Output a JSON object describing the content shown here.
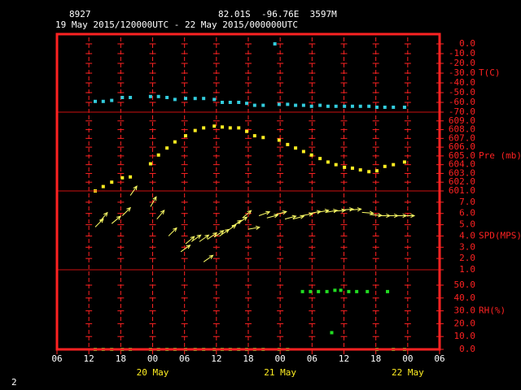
{
  "header": {
    "station": "8927",
    "location": "82.01S  -96.76E  3597M",
    "period": "19 May 2015/120000UTC - 22 May 2015/000000UTC"
  },
  "page_number": "2",
  "x_axis": {
    "xlim": [
      0,
      72
    ],
    "xticks": [
      {
        "value": 0,
        "label": "06"
      },
      {
        "value": 6,
        "label": "12"
      },
      {
        "value": 12,
        "label": "18"
      },
      {
        "value": 18,
        "label": "00"
      },
      {
        "value": 24,
        "label": "06"
      },
      {
        "value": 30,
        "label": "12"
      },
      {
        "value": 36,
        "label": "18"
      },
      {
        "value": 42,
        "label": "00"
      },
      {
        "value": 48,
        "label": "06"
      },
      {
        "value": 54,
        "label": "12"
      },
      {
        "value": 60,
        "label": "18"
      },
      {
        "value": 66,
        "label": "00"
      },
      {
        "value": 72,
        "label": "06"
      }
    ],
    "date_labels": [
      {
        "value": 18,
        "label": "20 May"
      },
      {
        "value": 42,
        "label": "21 May"
      },
      {
        "value": 66,
        "label": "22 May"
      }
    ]
  },
  "chart_data": [
    {
      "type": "scatter",
      "ylabel": "T(C)",
      "ylim": [
        -70,
        10
      ],
      "yticks": [
        {
          "value": 0,
          "label": "0.0"
        },
        {
          "value": -10,
          "label": "-10.0"
        },
        {
          "value": -20,
          "label": "-20.0"
        },
        {
          "value": -30,
          "label": "-30.0"
        },
        {
          "value": -40,
          "label": "-40.0"
        },
        {
          "value": -50,
          "label": "-50.0"
        },
        {
          "value": -60,
          "label": "-60.0"
        },
        {
          "value": -70,
          "label": "-70.0"
        }
      ],
      "series": [
        {
          "color": "#33ccdd",
          "x": [
            7.2,
            8.7,
            10.3,
            12.3,
            13.8,
            17.6,
            19.1,
            20.7,
            22.2,
            24.2,
            26,
            27.6,
            29.6,
            31.1,
            32.6,
            34.2,
            35.7,
            37.2,
            38.8,
            41,
            41.8,
            43.4,
            44.9,
            46.4,
            47.9,
            49.5,
            51,
            52.5,
            54.1,
            55.6,
            57.1,
            58.7,
            60.2,
            61.7,
            63.3,
            65.4
          ],
          "values": [
            -59,
            -59,
            -58,
            -55,
            -55,
            -54,
            -54,
            -55,
            -57,
            -56,
            -56,
            -56,
            -57,
            -60,
            -60,
            -60,
            -61,
            -63,
            -63,
            0,
            -62,
            -62,
            -63,
            -63,
            -64,
            -63,
            -64,
            -64,
            -64,
            -64,
            -64,
            -64,
            -65,
            -65,
            -65,
            -65
          ]
        }
      ]
    },
    {
      "type": "scatter",
      "ylabel": "Pre (mb)",
      "ylim": [
        601,
        610
      ],
      "yticks": [
        {
          "value": 609,
          "label": "609.0"
        },
        {
          "value": 608,
          "label": "608.0"
        },
        {
          "value": 607,
          "label": "607.0"
        },
        {
          "value": 606,
          "label": "606.0"
        },
        {
          "value": 605,
          "label": "605.0"
        },
        {
          "value": 604,
          "label": "604.0"
        },
        {
          "value": 603,
          "label": "603.0"
        },
        {
          "value": 602,
          "label": "602.0"
        },
        {
          "value": 601,
          "label": "601.0"
        }
      ],
      "series": [
        {
          "color": "#ffee22",
          "x": [
            7.2,
            8.7,
            10.3,
            12.3,
            13.8,
            17.6,
            19.1,
            20.7,
            22.2,
            24.2,
            26,
            27.6,
            29.6,
            31.1,
            32.6,
            34.2,
            35.7,
            37.2,
            38.8,
            41.8,
            43.4,
            44.9,
            46.4,
            47.9,
            49.5,
            51,
            52.5,
            54.1,
            55.6,
            57.1,
            58.7,
            60.2,
            61.7,
            63.3,
            65.4
          ],
          "values": [
            601.0,
            601.5,
            602.0,
            602.5,
            602.6,
            604.1,
            605.1,
            605.9,
            606.6,
            607.3,
            607.9,
            608.2,
            608.4,
            608.3,
            608.2,
            608.2,
            607.8,
            607.3,
            607.1,
            606.8,
            606.3,
            605.9,
            605.5,
            605.1,
            604.7,
            604.3,
            604.0,
            603.7,
            603.6,
            603.4,
            603.2,
            603.3,
            603.8,
            604.0,
            604.3
          ]
        }
      ]
    },
    {
      "type": "vector",
      "ylabel": "SPD(MPS)",
      "ylim": [
        1,
        8
      ],
      "yticks": [
        {
          "value": 7,
          "label": "7.0"
        },
        {
          "value": 6,
          "label": "6.0"
        },
        {
          "value": 5,
          "label": "5.0"
        },
        {
          "value": 4,
          "label": "4.0"
        },
        {
          "value": 3,
          "label": "3.0"
        },
        {
          "value": 2,
          "label": "2.0"
        },
        {
          "value": 1,
          "label": "1.0"
        }
      ],
      "series": [
        {
          "color": "#ffff66",
          "x": [
            7.2,
            8.1,
            10.3,
            12.3,
            13.8,
            17.6,
            18.8,
            21.0,
            23.3,
            24.2,
            25.3,
            26.8,
            27.6,
            28.3,
            29.6,
            30.6,
            31.9,
            32.9,
            34.0,
            34.9,
            36.0,
            38.0,
            39.5,
            41.1,
            42.9,
            44.4,
            46.0,
            47.5,
            49.0,
            50.6,
            52.1,
            53.6,
            55.1,
            57.4,
            59.0,
            60.5,
            62.0,
            63.6,
            65.1
          ],
          "values": [
            4.8,
            5.3,
            5.1,
            5.8,
            7.6,
            6.6,
            5.5,
            4.0,
            2.6,
            3.3,
            3.5,
            3.5,
            1.7,
            3.7,
            3.9,
            4.0,
            4.4,
            4.8,
            5.1,
            5.6,
            4.6,
            5.8,
            5.6,
            5.9,
            5.5,
            5.5,
            5.8,
            6.0,
            6.1,
            6.1,
            6.2,
            6.3,
            6.3,
            6.1,
            5.9,
            5.8,
            5.8,
            5.8,
            5.8
          ],
          "directions": [
            45,
            50,
            40,
            45,
            55,
            60,
            50,
            45,
            35,
            40,
            35,
            35,
            35,
            35,
            35,
            35,
            35,
            35,
            35,
            40,
            10,
            20,
            15,
            15,
            15,
            15,
            10,
            10,
            10,
            10,
            5,
            5,
            5,
            -5,
            -5,
            0,
            0,
            0,
            0
          ]
        }
      ]
    },
    {
      "type": "scatter",
      "ylabel": "RH(%)",
      "ylim": [
        0,
        62
      ],
      "yticks": [
        {
          "value": 50,
          "label": "50.0"
        },
        {
          "value": 40,
          "label": "40.0"
        },
        {
          "value": 30,
          "label": "30.0"
        },
        {
          "value": 20,
          "label": "20.0"
        },
        {
          "value": 10,
          "label": "10.0"
        },
        {
          "value": 0,
          "label": "0.0"
        }
      ],
      "series": [
        {
          "color": "#22dd22",
          "x": [
            7.2,
            8.7,
            10.3,
            12.3,
            13.8,
            17.6,
            19.1,
            20.7,
            22.2,
            24.2,
            26,
            27.6,
            29.6,
            31.1,
            32.6,
            34.2,
            35.7,
            37.2,
            38.8,
            41.8,
            43.4,
            46.2,
            47.7,
            49.2,
            50.8,
            51.7,
            52.3,
            53.4,
            54.9,
            56.4,
            58.4,
            60.2,
            62.2,
            63.3,
            65.4
          ],
          "values": [
            0,
            0,
            0,
            0,
            0,
            0,
            0,
            0,
            0,
            0,
            0,
            0,
            0,
            0,
            0,
            0,
            0,
            0,
            0,
            0,
            0,
            45,
            45,
            45,
            45,
            13,
            46,
            46,
            45,
            45,
            45,
            0,
            45,
            0,
            0
          ]
        }
      ]
    }
  ]
}
